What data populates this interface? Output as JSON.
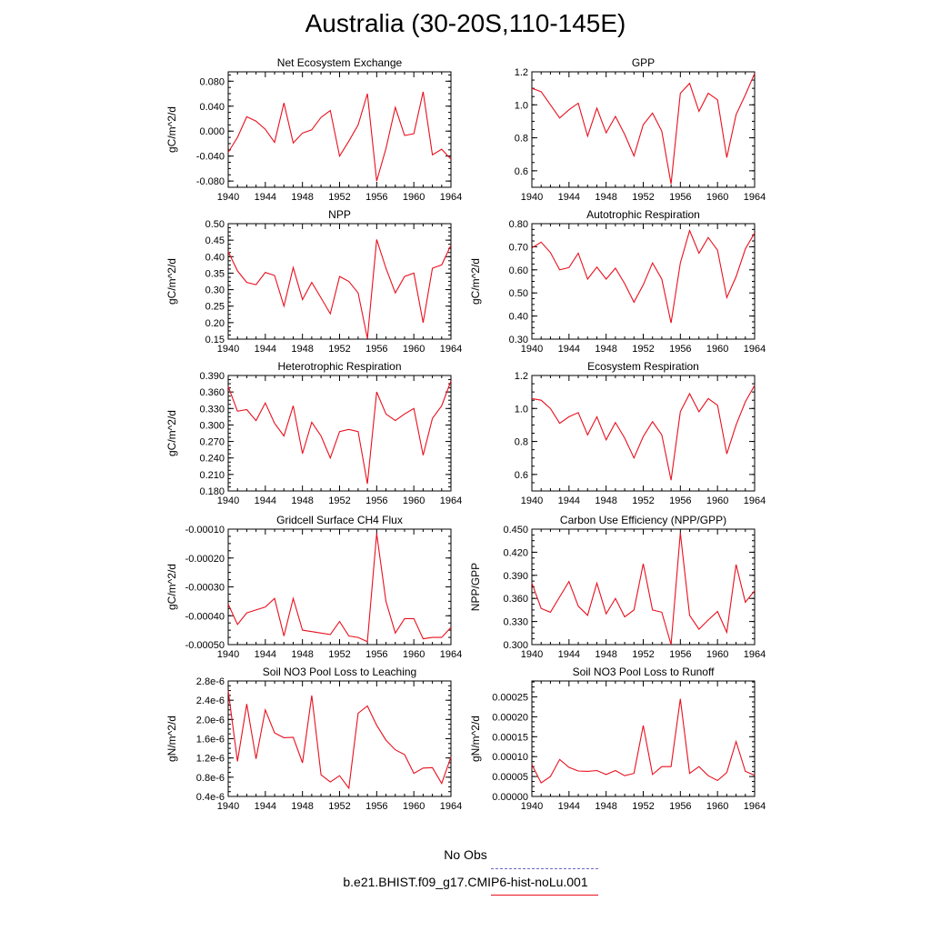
{
  "title": "Australia (30-20S,110-145E)",
  "legend": {
    "obs_label": "No Obs",
    "obs_color": "#6a6acb",
    "model_label": "b.e21.BHIST.f09_g17.CMIP6-hist-noLu.001",
    "model_color": "#e8101e"
  },
  "chart_data": [
    {
      "type": "line",
      "title": "Net Ecosystem Exchange",
      "ylabel": "gC/m^2/d",
      "xlim": [
        1940,
        1964
      ],
      "xticks": [
        "1940",
        "1944",
        "1948",
        "1952",
        "1956",
        "1960",
        "1964"
      ],
      "ylim": [
        -0.09,
        0.095
      ],
      "yticks": [
        "-0.080",
        "-0.040",
        "0.000",
        "0.040",
        "0.080"
      ],
      "yticks_values": [
        -0.08,
        -0.04,
        0.0,
        0.04,
        0.08
      ],
      "x": [
        1940,
        1941,
        1942,
        1943,
        1944,
        1945,
        1946,
        1947,
        1948,
        1949,
        1950,
        1951,
        1952,
        1953,
        1954,
        1955,
        1956,
        1957,
        1958,
        1959,
        1960,
        1961,
        1962,
        1963,
        1964
      ],
      "values": [
        -0.034,
        -0.01,
        0.023,
        0.016,
        0.003,
        -0.018,
        0.045,
        -0.019,
        -0.003,
        0.002,
        0.022,
        0.033,
        -0.04,
        -0.016,
        0.01,
        0.06,
        -0.08,
        -0.028,
        0.038,
        -0.007,
        -0.004,
        0.063,
        -0.038,
        -0.029,
        -0.045
      ]
    },
    {
      "type": "line",
      "title": "GPP",
      "ylabel": "",
      "xlim": [
        1940,
        1964
      ],
      "xticks": [
        "1940",
        "1944",
        "1948",
        "1952",
        "1956",
        "1960",
        "1964"
      ],
      "ylim": [
        0.5,
        1.2
      ],
      "yticks": [
        "0.6",
        "0.8",
        "1.0",
        "1.2"
      ],
      "yticks_values": [
        0.6,
        0.8,
        1.0,
        1.2
      ],
      "x": [
        1940,
        1941,
        1942,
        1943,
        1944,
        1945,
        1946,
        1947,
        1948,
        1949,
        1950,
        1951,
        1952,
        1953,
        1954,
        1955,
        1956,
        1957,
        1958,
        1959,
        1960,
        1961,
        1962,
        1963,
        1964
      ],
      "values": [
        1.1,
        1.08,
        1.0,
        0.92,
        0.97,
        1.01,
        0.81,
        0.98,
        0.83,
        0.93,
        0.82,
        0.69,
        0.88,
        0.95,
        0.84,
        0.52,
        1.07,
        1.13,
        0.96,
        1.07,
        1.03,
        0.68,
        0.94,
        1.06,
        1.19
      ]
    },
    {
      "type": "line",
      "title": "NPP",
      "ylabel": "gC/m^2/d",
      "xlim": [
        1940,
        1964
      ],
      "xticks": [
        "1940",
        "1944",
        "1948",
        "1952",
        "1956",
        "1960",
        "1964"
      ],
      "ylim": [
        0.15,
        0.5
      ],
      "yticks": [
        "0.15",
        "0.20",
        "0.25",
        "0.30",
        "0.35",
        "0.40",
        "0.45",
        "0.50"
      ],
      "yticks_values": [
        0.15,
        0.2,
        0.25,
        0.3,
        0.35,
        0.4,
        0.45,
        0.5
      ],
      "x": [
        1940,
        1941,
        1942,
        1943,
        1944,
        1945,
        1946,
        1947,
        1948,
        1949,
        1950,
        1951,
        1952,
        1953,
        1954,
        1955,
        1956,
        1957,
        1958,
        1959,
        1960,
        1961,
        1962,
        1963,
        1964
      ],
      "values": [
        0.415,
        0.357,
        0.322,
        0.315,
        0.352,
        0.343,
        0.25,
        0.367,
        0.27,
        0.322,
        0.275,
        0.227,
        0.34,
        0.325,
        0.29,
        0.152,
        0.452,
        0.365,
        0.29,
        0.34,
        0.35,
        0.2,
        0.365,
        0.375,
        0.435
      ]
    },
    {
      "type": "line",
      "title": "Autotrophic Respiration",
      "ylabel": "gC/m^2/d",
      "xlim": [
        1940,
        1964
      ],
      "xticks": [
        "1940",
        "1944",
        "1948",
        "1952",
        "1956",
        "1960",
        "1964"
      ],
      "ylim": [
        0.3,
        0.8
      ],
      "yticks": [
        "0.30",
        "0.40",
        "0.50",
        "0.60",
        "0.70",
        "0.80"
      ],
      "yticks_values": [
        0.3,
        0.4,
        0.5,
        0.6,
        0.7,
        0.8
      ],
      "x": [
        1940,
        1941,
        1942,
        1943,
        1944,
        1945,
        1946,
        1947,
        1948,
        1949,
        1950,
        1951,
        1952,
        1953,
        1954,
        1955,
        1956,
        1957,
        1958,
        1959,
        1960,
        1961,
        1962,
        1963,
        1964
      ],
      "values": [
        0.695,
        0.72,
        0.675,
        0.6,
        0.61,
        0.672,
        0.56,
        0.612,
        0.56,
        0.607,
        0.54,
        0.46,
        0.535,
        0.63,
        0.56,
        0.37,
        0.63,
        0.77,
        0.672,
        0.74,
        0.685,
        0.48,
        0.57,
        0.69,
        0.76
      ]
    },
    {
      "type": "line",
      "title": "Heterotrophic Respiration",
      "ylabel": "gC/m^2/d",
      "xlim": [
        1940,
        1964
      ],
      "xticks": [
        "1940",
        "1944",
        "1948",
        "1952",
        "1956",
        "1960",
        "1964"
      ],
      "ylim": [
        0.18,
        0.39
      ],
      "yticks": [
        "0.180",
        "0.210",
        "0.240",
        "0.270",
        "0.300",
        "0.330",
        "0.360",
        "0.390"
      ],
      "yticks_values": [
        0.18,
        0.21,
        0.24,
        0.27,
        0.3,
        0.33,
        0.36,
        0.39
      ],
      "x": [
        1940,
        1941,
        1942,
        1943,
        1944,
        1945,
        1946,
        1947,
        1948,
        1949,
        1950,
        1951,
        1952,
        1953,
        1954,
        1955,
        1956,
        1957,
        1958,
        1959,
        1960,
        1961,
        1962,
        1963,
        1964
      ],
      "values": [
        0.37,
        0.325,
        0.328,
        0.308,
        0.34,
        0.303,
        0.28,
        0.335,
        0.248,
        0.305,
        0.28,
        0.24,
        0.288,
        0.292,
        0.288,
        0.193,
        0.36,
        0.32,
        0.308,
        0.32,
        0.33,
        0.245,
        0.312,
        0.335,
        0.38
      ]
    },
    {
      "type": "line",
      "title": "Ecosystem Respiration",
      "ylabel": "",
      "xlim": [
        1940,
        1964
      ],
      "xticks": [
        "1940",
        "1944",
        "1948",
        "1952",
        "1956",
        "1960",
        "1964"
      ],
      "ylim": [
        0.5,
        1.2
      ],
      "yticks": [
        "0.6",
        "0.8",
        "1.0",
        "1.2"
      ],
      "yticks_values": [
        0.6,
        0.8,
        1.0,
        1.2
      ],
      "x": [
        1940,
        1941,
        1942,
        1943,
        1944,
        1945,
        1946,
        1947,
        1948,
        1949,
        1950,
        1951,
        1952,
        1953,
        1954,
        1955,
        1956,
        1957,
        1958,
        1959,
        1960,
        1961,
        1962,
        1963,
        1964
      ],
      "values": [
        1.06,
        1.05,
        1.0,
        0.91,
        0.95,
        0.975,
        0.84,
        0.95,
        0.81,
        0.915,
        0.82,
        0.7,
        0.83,
        0.92,
        0.84,
        0.565,
        0.98,
        1.09,
        0.98,
        1.06,
        1.02,
        0.725,
        0.9,
        1.04,
        1.14
      ]
    },
    {
      "type": "line",
      "title": "Gridcell Surface CH4 Flux",
      "ylabel": "gC/m^2/d",
      "xlim": [
        1940,
        1964
      ],
      "xticks": [
        "1940",
        "1944",
        "1948",
        "1952",
        "1956",
        "1960",
        "1964"
      ],
      "ylim": [
        -0.0005,
        -0.0001
      ],
      "yticks": [
        "-0.00050",
        "-0.00040",
        "-0.00030",
        "-0.00020",
        "-0.00010"
      ],
      "yticks_values": [
        -0.0005,
        -0.0004,
        -0.0003,
        -0.0002,
        -0.0001
      ],
      "x": [
        1940,
        1941,
        1942,
        1943,
        1944,
        1945,
        1946,
        1947,
        1948,
        1949,
        1950,
        1951,
        1952,
        1953,
        1954,
        1955,
        1956,
        1957,
        1958,
        1959,
        1960,
        1961,
        1962,
        1963,
        1964
      ],
      "values": [
        -0.00036,
        -0.00043,
        -0.00039,
        -0.00038,
        -0.00037,
        -0.00034,
        -0.00047,
        -0.00034,
        -0.00045,
        -0.000455,
        -0.00046,
        -0.000465,
        -0.00042,
        -0.00047,
        -0.000475,
        -0.00049,
        -0.000115,
        -0.00035,
        -0.00046,
        -0.00041,
        -0.00041,
        -0.00048,
        -0.000475,
        -0.000475,
        -0.00044
      ]
    },
    {
      "type": "line",
      "title": "Carbon Use Efficiency (NPP/GPP)",
      "ylabel": "NPP/GPP",
      "xlim": [
        1940,
        1964
      ],
      "xticks": [
        "1940",
        "1944",
        "1948",
        "1952",
        "1956",
        "1960",
        "1964"
      ],
      "ylim": [
        0.3,
        0.45
      ],
      "yticks": [
        "0.300",
        "0.330",
        "0.360",
        "0.390",
        "0.420",
        "0.450"
      ],
      "yticks_values": [
        0.3,
        0.33,
        0.36,
        0.39,
        0.42,
        0.45
      ],
      "x": [
        1940,
        1941,
        1942,
        1943,
        1944,
        1945,
        1946,
        1947,
        1948,
        1949,
        1950,
        1951,
        1952,
        1953,
        1954,
        1955,
        1956,
        1957,
        1958,
        1959,
        1960,
        1961,
        1962,
        1963,
        1964
      ],
      "values": [
        0.38,
        0.347,
        0.342,
        0.362,
        0.382,
        0.35,
        0.338,
        0.38,
        0.34,
        0.36,
        0.336,
        0.345,
        0.405,
        0.345,
        0.342,
        0.3,
        0.445,
        0.338,
        0.32,
        0.332,
        0.343,
        0.316,
        0.404,
        0.355,
        0.37
      ]
    },
    {
      "type": "line",
      "title": "Soil NO3 Pool Loss to Leaching",
      "ylabel": "gN/m^2/d",
      "xlim": [
        1940,
        1964
      ],
      "xticks": [
        "1940",
        "1944",
        "1948",
        "1952",
        "1956",
        "1960",
        "1964"
      ],
      "ylim": [
        4e-07,
        2.8e-06
      ],
      "yticks": [
        "0.4e-6",
        "0.8e-6",
        "1.2e-6",
        "1.6e-6",
        "2.0e-6",
        "2.4e-6",
        "2.8e-6"
      ],
      "yticks_values": [
        4e-07,
        8e-07,
        1.2e-06,
        1.6e-06,
        2e-06,
        2.4e-06,
        2.8e-06
      ],
      "x": [
        1940,
        1941,
        1942,
        1943,
        1944,
        1945,
        1946,
        1947,
        1948,
        1949,
        1950,
        1951,
        1952,
        1953,
        1954,
        1955,
        1956,
        1957,
        1958,
        1959,
        1960,
        1961,
        1962,
        1963,
        1964
      ],
      "values": [
        2.6e-06,
        1.13e-06,
        2.32e-06,
        1.18e-06,
        2.2e-06,
        1.72e-06,
        1.62e-06,
        1.63e-06,
        1.1e-06,
        2.5e-06,
        8.5e-07,
        7e-07,
        8.3e-07,
        5.7e-07,
        2.13e-06,
        2.28e-06,
        1.88e-06,
        1.57e-06,
        1.37e-06,
        1.27e-06,
        8.8e-07,
        9.9e-07,
        1e-06,
        6.7e-07,
        1.22e-06
      ]
    },
    {
      "type": "line",
      "title": "Soil NO3 Pool Loss to Runoff",
      "ylabel": "gN/m^2/d",
      "xlim": [
        1940,
        1964
      ],
      "xticks": [
        "1940",
        "1944",
        "1948",
        "1952",
        "1956",
        "1960",
        "1964"
      ],
      "ylim": [
        0,
        0.00029
      ],
      "yticks": [
        "0.00000",
        "0.00005",
        "0.00010",
        "0.00015",
        "0.00020",
        "0.00025"
      ],
      "yticks_values": [
        0,
        5e-05,
        0.0001,
        0.00015,
        0.0002,
        0.00025
      ],
      "x": [
        1940,
        1941,
        1942,
        1943,
        1944,
        1945,
        1946,
        1947,
        1948,
        1949,
        1950,
        1951,
        1952,
        1953,
        1954,
        1955,
        1956,
        1957,
        1958,
        1959,
        1960,
        1961,
        1962,
        1963,
        1964
      ],
      "values": [
        8e-05,
        3.4e-05,
        5e-05,
        9.3e-05,
        7.3e-05,
        6.4e-05,
        6.3e-05,
        6.5e-05,
        5.5e-05,
        6.5e-05,
        5.2e-05,
        5.8e-05,
        0.000178,
        5.5e-05,
        7.5e-05,
        7.5e-05,
        0.000245,
        5.8e-05,
        7.5e-05,
        5.2e-05,
        4e-05,
        6e-05,
        0.000138,
        6.3e-05,
        5.3e-05
      ]
    }
  ]
}
